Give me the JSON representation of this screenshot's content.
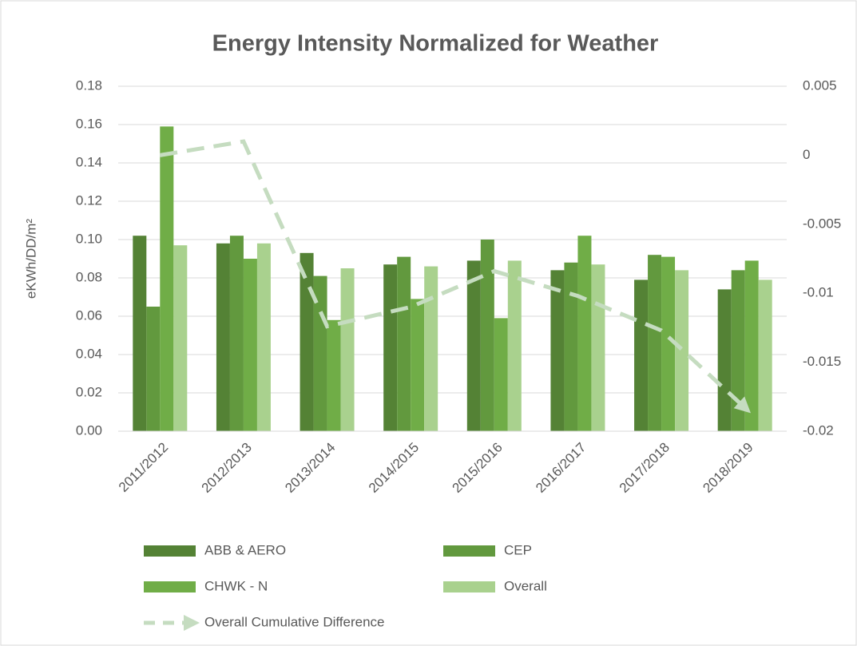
{
  "chart_data": {
    "type": "bar",
    "title": "Energy Intensity Normalized for Weather",
    "y_label": "eKWh/DD/m²",
    "categories": [
      "2011/2012",
      "2012/2013",
      "2013/2014",
      "2014/2015",
      "2015/2016",
      "2016/2017",
      "2017/2018",
      "2018/2019"
    ],
    "series": [
      {
        "name": "ABB & AERO",
        "color": "#548235",
        "values": [
          0.102,
          0.098,
          0.093,
          0.087,
          0.089,
          0.084,
          0.079,
          0.074
        ]
      },
      {
        "name": "CEP",
        "color": "#62993e",
        "values": [
          0.065,
          0.102,
          0.081,
          0.091,
          0.1,
          0.088,
          0.092,
          0.084
        ]
      },
      {
        "name": "CHWK - N",
        "color": "#70ad47",
        "values": [
          0.159,
          0.09,
          0.058,
          0.069,
          0.059,
          0.102,
          0.091,
          0.089
        ]
      },
      {
        "name": "Overall",
        "color": "#a9d18e",
        "values": [
          0.097,
          0.098,
          0.085,
          0.086,
          0.089,
          0.087,
          0.084,
          0.079
        ]
      },
      {
        "name": "Overall Cumulative Difference",
        "color": "#c5dcc0",
        "type": "line",
        "axis": "y2",
        "values": [
          0,
          0.001,
          -0.0124,
          -0.011,
          -0.0084,
          -0.0102,
          -0.0127,
          -0.0183
        ]
      }
    ],
    "ylim": [
      0,
      0.18
    ],
    "yticks": [
      {
        "value": 0,
        "label": "0.00"
      },
      {
        "value": 0.02,
        "label": "0.02"
      },
      {
        "value": 0.04,
        "label": "0.04"
      },
      {
        "value": 0.06,
        "label": "0.06"
      },
      {
        "value": 0.08,
        "label": "0.08"
      },
      {
        "value": 0.1,
        "label": "0.10"
      },
      {
        "value": 0.12,
        "label": "0.12"
      },
      {
        "value": 0.14,
        "label": "0.14"
      },
      {
        "value": 0.16,
        "label": "0.16"
      },
      {
        "value": 0.18,
        "label": "0.18"
      }
    ],
    "y2lim": [
      -0.02,
      0.005
    ],
    "y2ticks": [
      0.005,
      0,
      -0.005,
      -0.01,
      -0.015,
      -0.02
    ],
    "grid": true
  }
}
